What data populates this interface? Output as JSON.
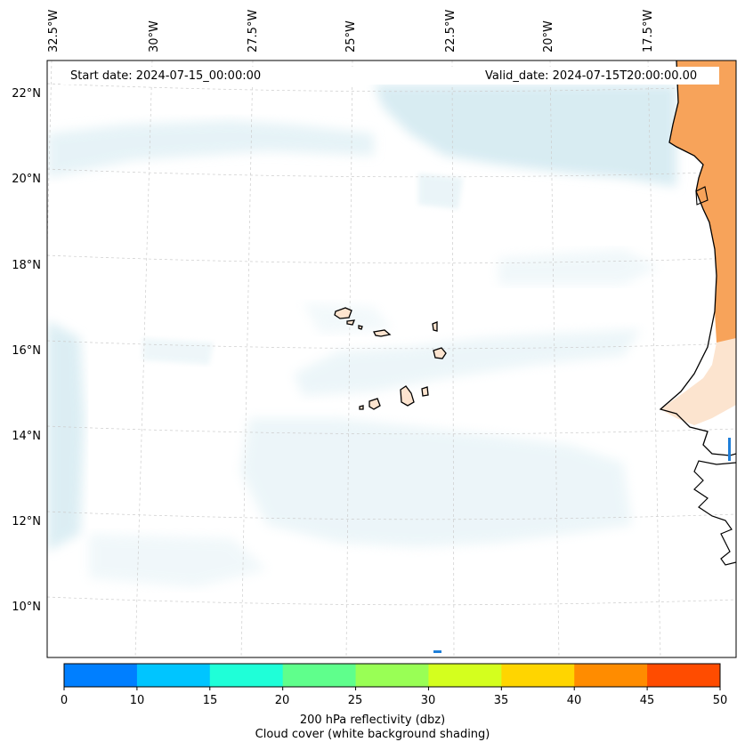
{
  "map": {
    "start_date": "Start date: 2024-07-15_00:00:00",
    "valid_date": "Valid_date: 2024-07-15T20:00:00.00",
    "lon_labels": [
      "32.5°W",
      "30°W",
      "27.5°W",
      "25°W",
      "22.5°W",
      "20°W",
      "17.5°W"
    ],
    "lat_labels": [
      "22°N",
      "20°N",
      "18°N",
      "16°N",
      "14°N",
      "12°N",
      "10°N"
    ]
  },
  "colorbar": {
    "ticks": [
      "0",
      "10",
      "15",
      "20",
      "25",
      "30",
      "35",
      "40",
      "45",
      "50"
    ],
    "colors": [
      "#007fff",
      "#00c5ff",
      "#1fffd8",
      "#5fff8c",
      "#99ff55",
      "#d4ff1e",
      "#ffd500",
      "#ff8c00",
      "#ff4c00"
    ],
    "title_line1": "200 hPa reflectivity (dbz)",
    "title_line2": "Cloud cover (white background shading)"
  },
  "colors": {
    "cloud": "#d6ebf2",
    "land_orange": "#f7a35a",
    "land_light": "#fce4cf",
    "grid": "#cccccc"
  }
}
